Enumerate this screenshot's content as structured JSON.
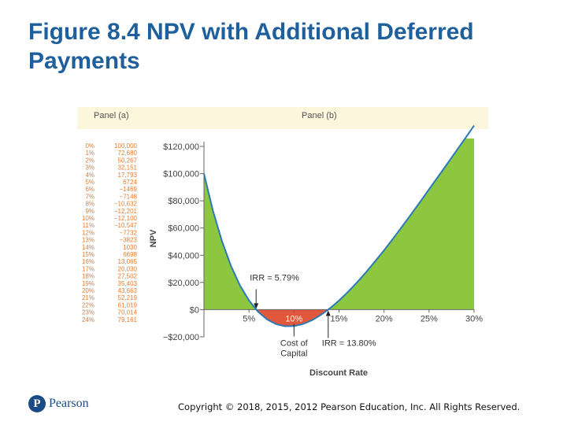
{
  "slide": {
    "title_line1": "Figure 8.4 NPV with Additional Deferred",
    "title_line2": "Payments"
  },
  "footer": {
    "logo_mark": "P",
    "logo_text": "Pearson",
    "copyright": "Copyright © 2018, 2015, 2012 Pearson Education, Inc. All Rights Reserved."
  },
  "chart_data": {
    "type": "line",
    "panel_a_header": "Panel (a)",
    "panel_b_header": "Panel (b)",
    "ylabel": "NPV",
    "xlabel": "Discount Rate",
    "rates": [
      0,
      1,
      2,
      3,
      4,
      5,
      6,
      7,
      8,
      9,
      10,
      11,
      12,
      13,
      14,
      15,
      16,
      17,
      18,
      19,
      20,
      21,
      22,
      23,
      24
    ],
    "table": {
      "rate_labels": [
        "0%",
        "1%",
        "2%",
        "3%",
        "4%",
        "5%",
        "6%",
        "7%",
        "8%",
        "9%",
        "10%",
        "11%",
        "12%",
        "13%",
        "14%",
        "15%",
        "16%",
        "17%",
        "18%",
        "19%",
        "20%",
        "21%",
        "22%",
        "23%",
        "24%"
      ],
      "npv_labels": [
        "100,000",
        "72,680",
        "50,267",
        "32,151",
        "17,793",
        "6724",
        "−1469",
        "−7148",
        "−10,632",
        "−12,201",
        "−12,100",
        "−10,547",
        "−7732",
        "−3823",
        "1030",
        "6698",
        "13,065",
        "20,030",
        "27,502",
        "35,403",
        "43,663",
        "52,219",
        "61,019",
        "70,014",
        "79,161"
      ]
    },
    "npv_values": [
      100000,
      72680,
      50267,
      32151,
      17793,
      6724,
      -1469,
      -7148,
      -10632,
      -12201,
      -12100,
      -10547,
      -7732,
      -3823,
      1030,
      6698,
      13065,
      20030,
      27502,
      35403,
      43663,
      52219,
      61019,
      70014,
      79161
    ],
    "curve_x": [
      0,
      1,
      2,
      3,
      4,
      5,
      6,
      7,
      8,
      9,
      10,
      11,
      12,
      13,
      14,
      15,
      16,
      17,
      18,
      19,
      20,
      21,
      22,
      23,
      24,
      25,
      26,
      27,
      28,
      29,
      30
    ],
    "curve_y": [
      100000,
      72680,
      50267,
      32151,
      17793,
      6724,
      -1469,
      -7148,
      -10632,
      -12201,
      -12100,
      -10547,
      -7732,
      -3823,
      1030,
      6698,
      13065,
      20030,
      27502,
      35403,
      43663,
      52219,
      61019,
      70014,
      79161,
      88400,
      97700,
      107000,
      116400,
      125800,
      135300
    ],
    "xlim": [
      0,
      30
    ],
    "ylim": [
      -20000,
      120000
    ],
    "y_ticks": [
      -20000,
      0,
      20000,
      40000,
      60000,
      80000,
      100000,
      120000
    ],
    "y_tick_labels": [
      "−$20,000",
      "$0",
      "$20,000",
      "$40,000",
      "$60,000",
      "$80,000",
      "$100,000",
      "$120,000"
    ],
    "x_ticks": [
      5,
      10,
      15,
      20,
      25,
      30
    ],
    "x_tick_labels": [
      "5%",
      "10%",
      "15%",
      "20%",
      "25%",
      "30%"
    ],
    "annotations": {
      "irr_low": {
        "label": "IRR = 5.79%",
        "x": 5.79
      },
      "irr_high": {
        "label": "IRR = 13.80%",
        "x": 13.8
      },
      "cost_of_capital": {
        "line1": "Cost of",
        "line2": "Capital",
        "x": 10
      }
    },
    "colors": {
      "positive_fill": "#8dc63f",
      "negative_fill": "#e1583c",
      "curve": "#2a7ab8",
      "header_bg": "#fbf6dc",
      "table_rates": "#e87b2e",
      "table_values": "#e87b2e",
      "text": "#333333"
    }
  }
}
